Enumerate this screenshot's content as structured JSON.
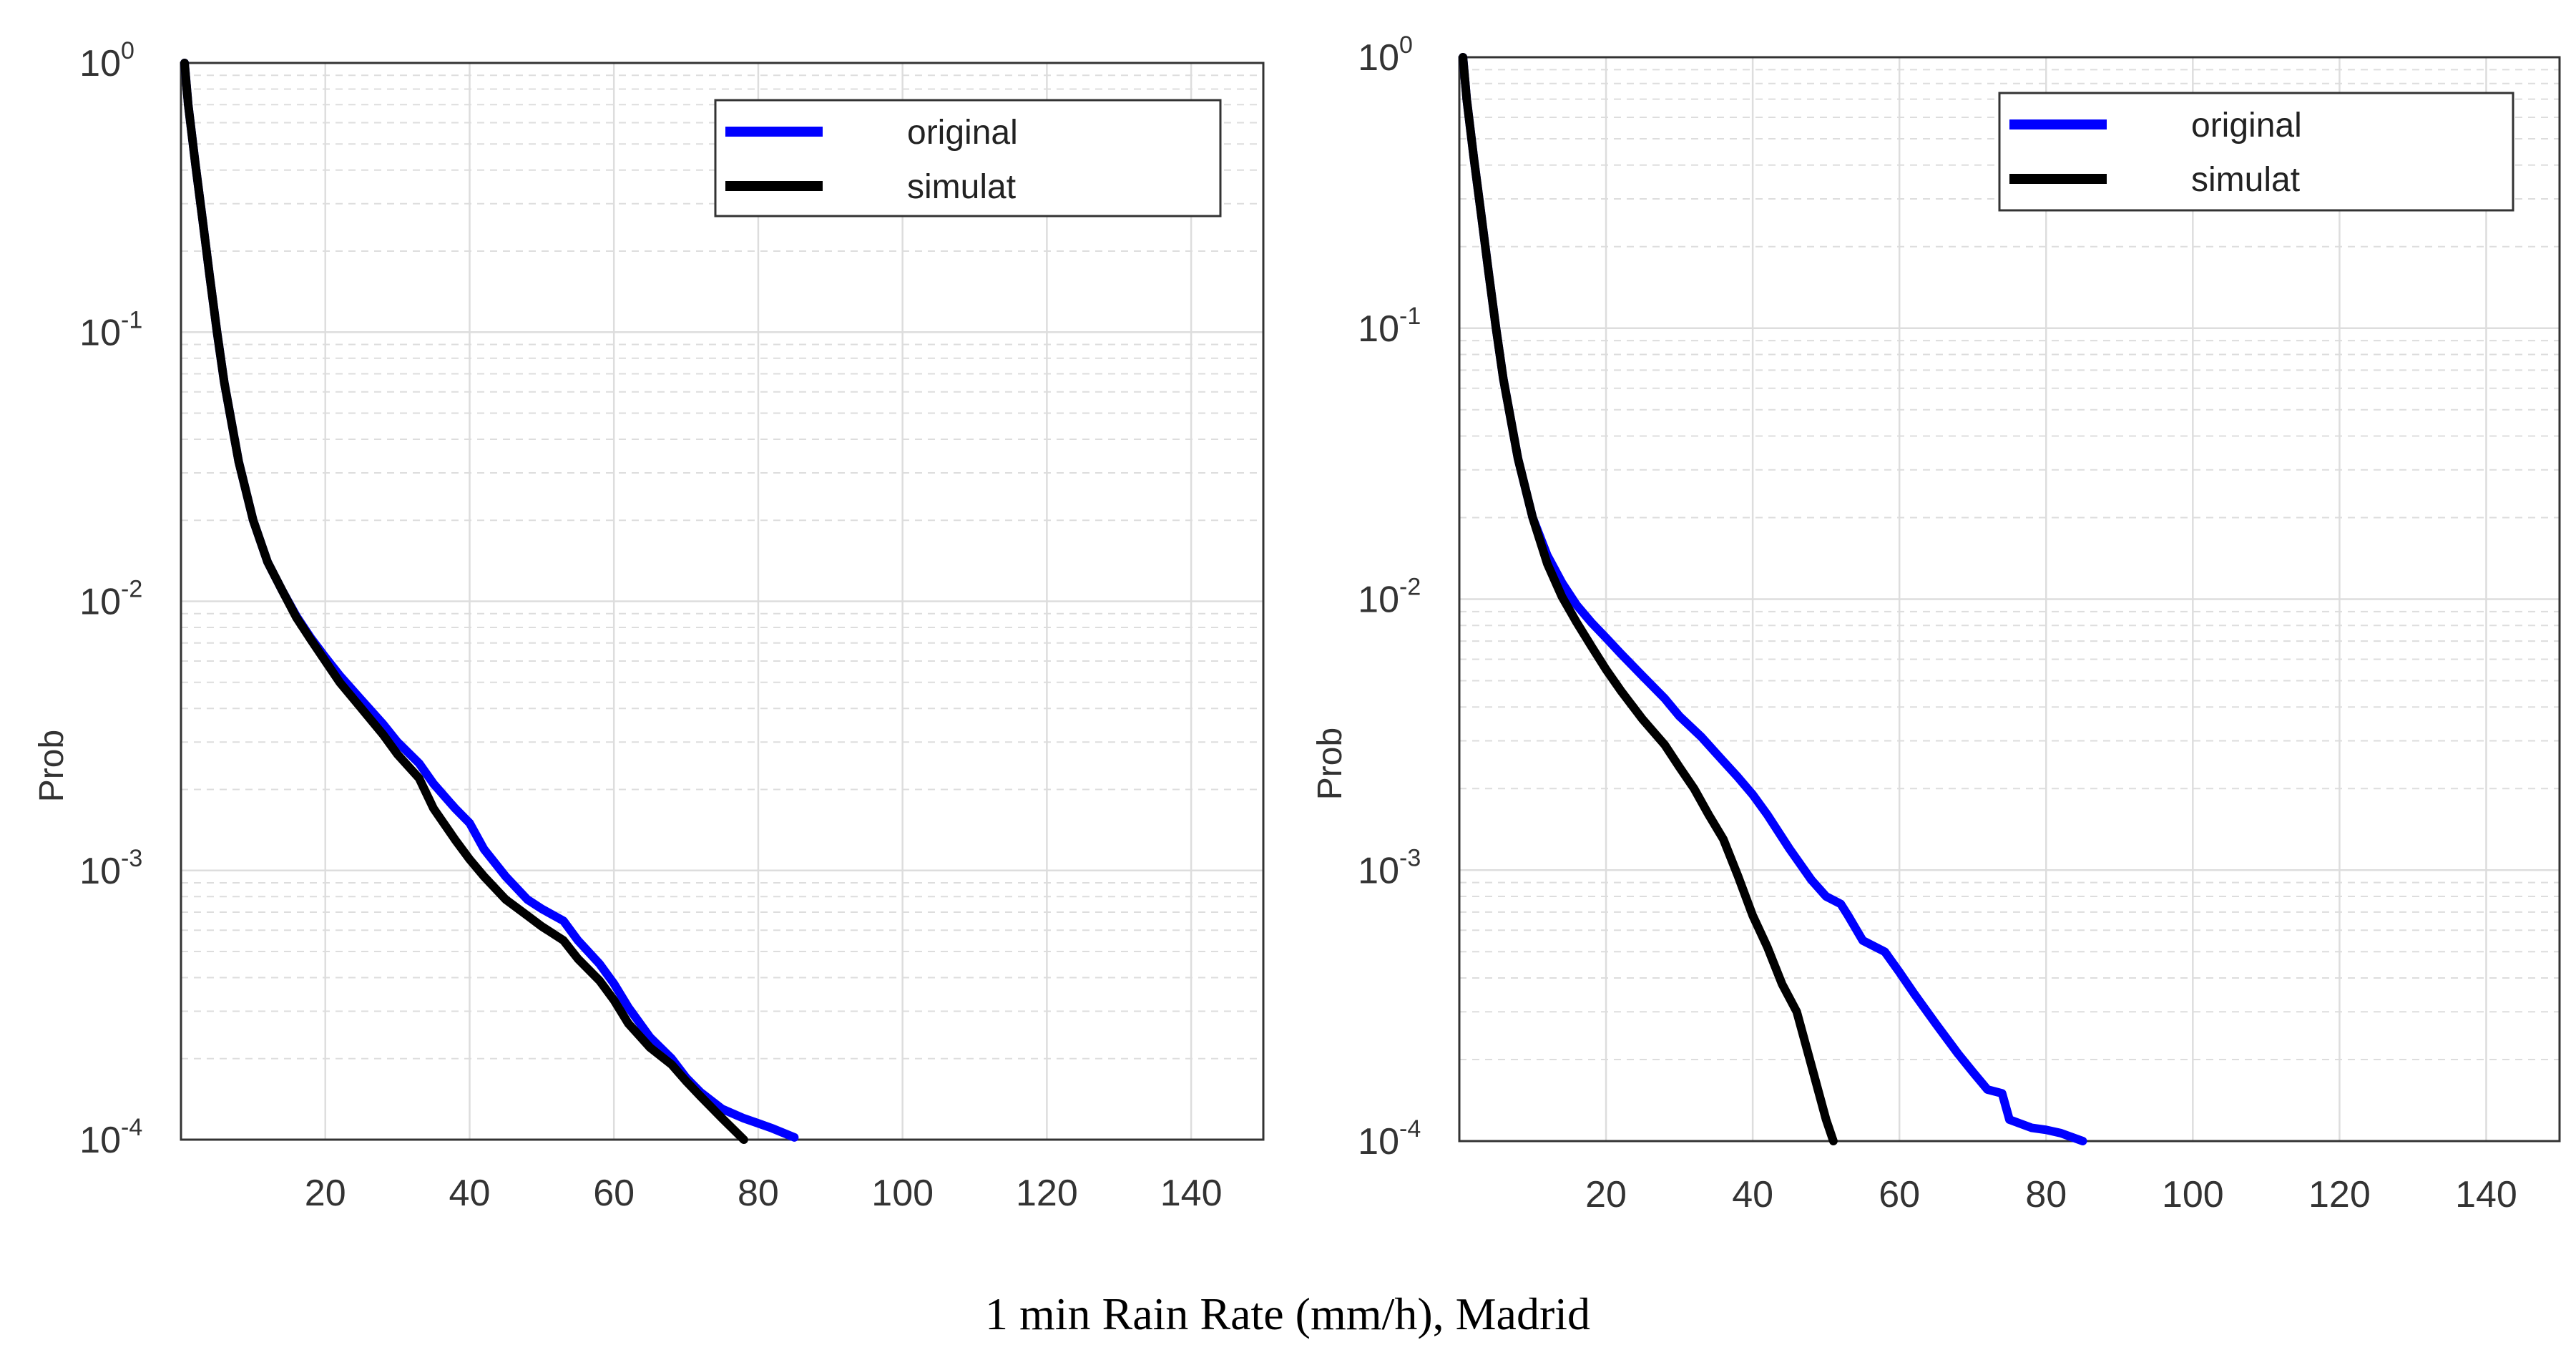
{
  "figure": {
    "caption": "1 min Rain Rate (mm/h), Madrid"
  },
  "colors": {
    "original": "#0000ff",
    "simulat": "#000000",
    "grid": "#dddddd",
    "axis": "#333333"
  },
  "chart_data": [
    {
      "type": "line",
      "title": "",
      "xlabel": "",
      "ylabel": "Prob",
      "xlim": [
        0,
        150
      ],
      "xticks": [
        20,
        40,
        60,
        80,
        100,
        120,
        140
      ],
      "ylim": [
        0.0001,
        1
      ],
      "yscale": "log",
      "yticks": [
        {
          "base": "10",
          "exp": "-4",
          "value": 0.0001
        },
        {
          "base": "10",
          "exp": "-3",
          "value": 0.001
        },
        {
          "base": "10",
          "exp": "-2",
          "value": 0.01
        },
        {
          "base": "10",
          "exp": "-1",
          "value": 0.1
        },
        {
          "base": "10",
          "exp": "0",
          "value": 1
        }
      ],
      "grid": true,
      "legend_position": "top-right",
      "series": [
        {
          "name": "original",
          "x": [
            0.5,
            1,
            2,
            3,
            4,
            5,
            6,
            8,
            10,
            12,
            14,
            16,
            18,
            20,
            22,
            25,
            28,
            30,
            33,
            35,
            38,
            40,
            42,
            45,
            48,
            50,
            53,
            55,
            58,
            60,
            62,
            65,
            68,
            70,
            72,
            75,
            78,
            80,
            82,
            85
          ],
          "y": [
            1,
            0.7,
            0.42,
            0.26,
            0.16,
            0.1,
            0.065,
            0.033,
            0.02,
            0.014,
            0.011,
            0.0088,
            0.0073,
            0.0062,
            0.0053,
            0.0043,
            0.0035,
            0.003,
            0.0025,
            0.0021,
            0.0017,
            0.0015,
            0.0012,
            0.00095,
            0.00078,
            0.00072,
            0.00065,
            0.00055,
            0.00045,
            0.00038,
            0.00031,
            0.00024,
            0.0002,
            0.00017,
            0.00015,
            0.00013,
            0.00012,
            0.000115,
            0.00011,
            0.000102
          ]
        },
        {
          "name": "simulat",
          "x": [
            0.5,
            1,
            2,
            3,
            4,
            5,
            6,
            8,
            10,
            12,
            14,
            16,
            18,
            20,
            22,
            25,
            28,
            30,
            33,
            35,
            38,
            40,
            42,
            45,
            48,
            50,
            53,
            55,
            58,
            60,
            62,
            65,
            68,
            70,
            72,
            75,
            78
          ],
          "y": [
            1,
            0.7,
            0.42,
            0.26,
            0.16,
            0.1,
            0.065,
            0.033,
            0.02,
            0.014,
            0.011,
            0.0087,
            0.0072,
            0.006,
            0.005,
            0.004,
            0.0032,
            0.0027,
            0.0022,
            0.0017,
            0.0013,
            0.0011,
            0.00095,
            0.00078,
            0.00068,
            0.00062,
            0.00055,
            0.00047,
            0.00039,
            0.00033,
            0.00027,
            0.00022,
            0.00019,
            0.000165,
            0.000145,
            0.00012,
            0.0001
          ]
        }
      ]
    },
    {
      "type": "line",
      "title": "",
      "xlabel": "",
      "ylabel": "Prob",
      "xlim": [
        0,
        150
      ],
      "xticks": [
        20,
        40,
        60,
        80,
        100,
        120,
        140
      ],
      "ylim": [
        0.0001,
        1
      ],
      "yscale": "log",
      "yticks": [
        {
          "base": "10",
          "exp": "-4",
          "value": 0.0001
        },
        {
          "base": "10",
          "exp": "-3",
          "value": 0.001
        },
        {
          "base": "10",
          "exp": "-2",
          "value": 0.01
        },
        {
          "base": "10",
          "exp": "-1",
          "value": 0.1
        },
        {
          "base": "10",
          "exp": "0",
          "value": 1
        }
      ],
      "grid": true,
      "legend_position": "top-right",
      "series": [
        {
          "name": "original",
          "x": [
            0.5,
            1,
            2,
            3,
            4,
            5,
            6,
            8,
            10,
            12,
            14,
            16,
            18,
            20,
            22,
            25,
            28,
            30,
            33,
            35,
            38,
            40,
            42,
            45,
            48,
            50,
            52,
            53,
            55,
            58,
            60,
            62,
            65,
            68,
            70,
            72,
            74,
            75,
            78,
            80,
            82,
            85
          ],
          "y": [
            1,
            0.7,
            0.42,
            0.26,
            0.16,
            0.1,
            0.065,
            0.033,
            0.02,
            0.0145,
            0.0115,
            0.0095,
            0.0082,
            0.0072,
            0.0063,
            0.0052,
            0.0043,
            0.0037,
            0.0031,
            0.0027,
            0.0022,
            0.0019,
            0.0016,
            0.0012,
            0.00092,
            0.0008,
            0.00075,
            0.00068,
            0.00055,
            0.0005,
            0.00042,
            0.00035,
            0.00027,
            0.00021,
            0.00018,
            0.000155,
            0.00015,
            0.00012,
            0.000112,
            0.00011,
            0.000107,
            0.0001
          ]
        },
        {
          "name": "simulat",
          "x": [
            0.5,
            1,
            2,
            3,
            4,
            5,
            6,
            8,
            10,
            12,
            14,
            16,
            18,
            20,
            22,
            25,
            28,
            30,
            32,
            34,
            36,
            38,
            40,
            42,
            44,
            46,
            48,
            50,
            51
          ],
          "y": [
            1,
            0.7,
            0.42,
            0.26,
            0.16,
            0.1,
            0.065,
            0.033,
            0.02,
            0.0135,
            0.0102,
            0.0082,
            0.0067,
            0.0055,
            0.0046,
            0.0036,
            0.0029,
            0.0024,
            0.002,
            0.0016,
            0.0013,
            0.00095,
            0.00068,
            0.00052,
            0.00038,
            0.0003,
            0.00019,
            0.00012,
            0.0001
          ]
        }
      ]
    }
  ]
}
